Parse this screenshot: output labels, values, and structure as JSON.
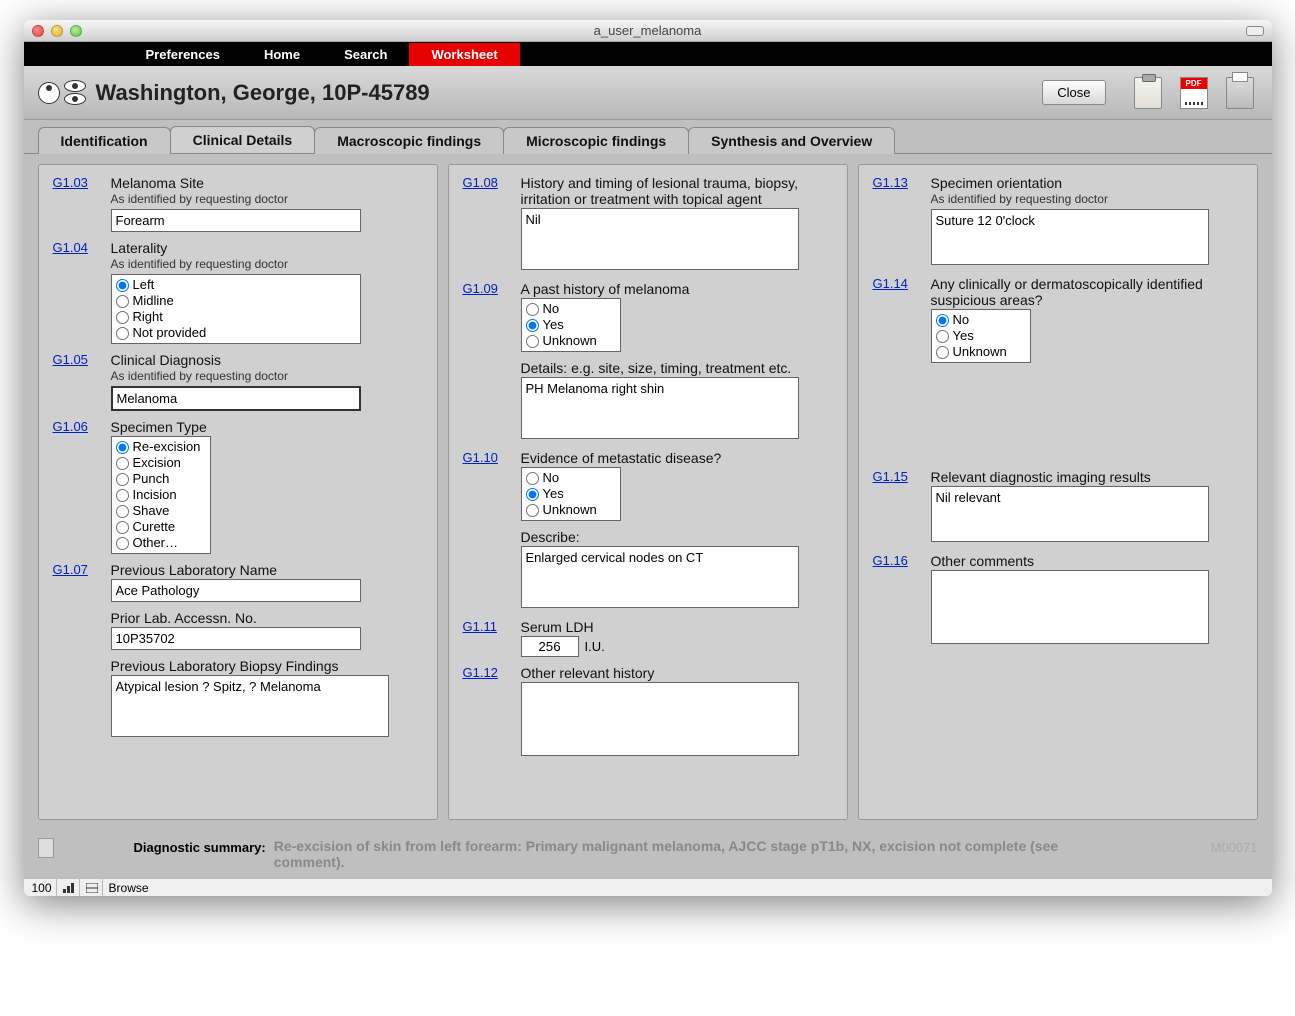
{
  "window": {
    "title": "a_user_melanoma"
  },
  "nav": {
    "items": [
      "Preferences",
      "Home",
      "Search",
      "Worksheet"
    ],
    "active_index": 3
  },
  "header": {
    "patient": "Washington, George, 10P-45789",
    "close_label": "Close"
  },
  "tabs": {
    "items": [
      "Identification",
      "Clinical Details",
      "Macroscopic findings",
      "Microscopic findings",
      "Synthesis and Overview"
    ],
    "active_index": 1
  },
  "colors": {
    "nav_bg": "#000000",
    "nav_active_bg": "#e60000",
    "panel_bg": "#d0d0d0",
    "content_bg": "#bfbfbf",
    "link_color": "#0020c0"
  },
  "fields": {
    "col1": [
      {
        "id": "G1.03",
        "label": "Melanoma Site",
        "sublabel": "As identified by requesting doctor",
        "type": "text",
        "value": "Forearm"
      },
      {
        "id": "G1.04",
        "label": "Laterality",
        "sublabel": "As identified by requesting doctor",
        "type": "radio",
        "width": "wide",
        "options": [
          "Left",
          "Midline",
          "Right",
          "Not provided"
        ],
        "selected": "Left"
      },
      {
        "id": "G1.05",
        "label": "Clinical Diagnosis",
        "sublabel": "As identified by requesting doctor",
        "type": "text",
        "bordered": true,
        "value": "Melanoma"
      },
      {
        "id": "G1.06",
        "label": "Specimen Type",
        "type": "radio",
        "width": "narrow",
        "options": [
          "Re-excision",
          "Excision",
          "Punch",
          "Incision",
          "Shave",
          "Curette",
          "Other…"
        ],
        "selected": "Re-excision"
      },
      {
        "id": "G1.07",
        "label": "Previous Laboratory Name",
        "type": "text",
        "value": "Ace Pathology"
      },
      {
        "label": "Prior Lab. Accessn. No.",
        "type": "text",
        "value": "10P35702"
      },
      {
        "label": "Previous Laboratory Biopsy Findings",
        "type": "textarea",
        "value": "Atypical lesion ? Spitz, ? Melanoma"
      }
    ],
    "col2": [
      {
        "id": "G1.08",
        "label": "History and timing of lesional trauma, biopsy, irritation or treatment with topical agent",
        "type": "textarea",
        "value": "Nil"
      },
      {
        "id": "G1.09",
        "label": "A past history of melanoma",
        "type": "radio",
        "width": "narrow",
        "options": [
          "No",
          "Yes",
          "Unknown"
        ],
        "selected": "Yes"
      },
      {
        "label": "Details: e.g. site, size, timing, treatment etc.",
        "type": "textarea",
        "value": "PH Melanoma right shin"
      },
      {
        "id": "G1.10",
        "label": "Evidence of metastatic disease?",
        "type": "radio",
        "width": "narrow",
        "options": [
          "No",
          "Yes",
          "Unknown"
        ],
        "selected": "Yes"
      },
      {
        "label": "Describe:",
        "type": "textarea",
        "value": "Enlarged cervical nodes on CT"
      },
      {
        "id": "G1.11",
        "label": "Serum LDH",
        "type": "number",
        "value": "256",
        "unit": "I.U."
      },
      {
        "id": "G1.12",
        "label": "Other relevant history",
        "type": "textarea",
        "size": "tall",
        "value": ""
      }
    ],
    "col3": [
      {
        "id": "G1.13",
        "label": "Specimen orientation",
        "sublabel": "As identified by requesting doctor",
        "type": "textarea",
        "size": "small",
        "value": "Suture 12 0'clock"
      },
      {
        "id": "G1.14",
        "label": "Any clinically or dermatoscopically identified suspicious areas?",
        "type": "radio",
        "width": "narrow",
        "options": [
          "No",
          "Yes",
          "Unknown"
        ],
        "selected": "No"
      },
      {
        "type": "spacer",
        "h": 90
      },
      {
        "id": "G1.15",
        "label": "Relevant diagnostic imaging results",
        "type": "textarea",
        "size": "small",
        "value": "Nil relevant"
      },
      {
        "id": "G1.16",
        "label": "Other comments",
        "type": "textarea",
        "size": "tall",
        "value": ""
      }
    ]
  },
  "footer": {
    "summary_label": "Diagnostic summary:",
    "summary_text": "Re-excision of skin from left forearm: Primary malignant melanoma, AJCC stage pT1b, NX, excision not complete (see comment).",
    "code": "M00071"
  },
  "status": {
    "zoom": "100",
    "mode": "Browse"
  }
}
